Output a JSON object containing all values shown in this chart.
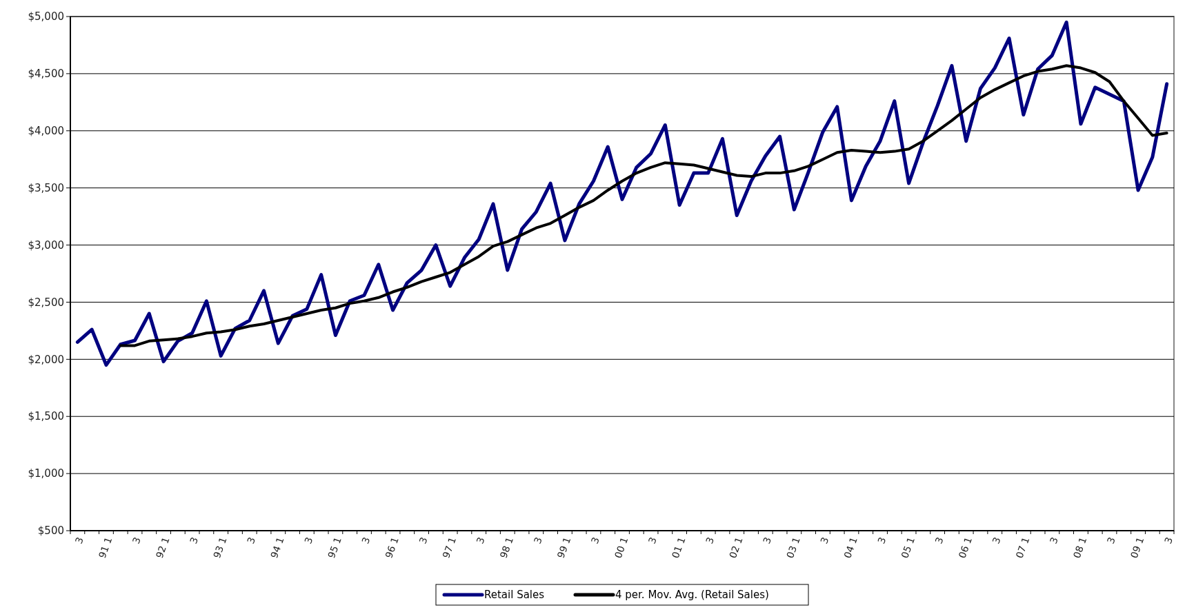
{
  "chart_data": {
    "type": "line",
    "categories": [
      "3",
      null,
      "91 1",
      null,
      "3",
      null,
      "92 1",
      null,
      "3",
      null,
      "93 1",
      null,
      "3",
      null,
      "94 1",
      null,
      "3",
      null,
      "95 1",
      null,
      "3",
      null,
      "96 1",
      null,
      "3",
      null,
      "97 1",
      null,
      "3",
      null,
      "98 1",
      null,
      "3",
      null,
      "99 1",
      null,
      "3",
      null,
      "00 1",
      null,
      "3",
      null,
      "01 1",
      null,
      "3",
      null,
      "02 1",
      null,
      "3",
      null,
      "03 1",
      null,
      "3",
      null,
      "04 1",
      null,
      "3",
      null,
      "05 1",
      null,
      "3",
      null,
      "06 1",
      null,
      "3",
      null,
      "07 1",
      null,
      "3",
      null,
      "08 1",
      null,
      "3",
      null,
      "09 1",
      null,
      "3"
    ],
    "series": [
      {
        "name": "Retail Sales",
        "color": "#000080",
        "values": [
          2150,
          2260,
          1950,
          2130,
          2165,
          2400,
          1980,
          2160,
          2230,
          2510,
          2030,
          2270,
          2340,
          2600,
          2140,
          2380,
          2440,
          2740,
          2210,
          2510,
          2560,
          2830,
          2430,
          2670,
          2780,
          3000,
          2640,
          2890,
          3050,
          3360,
          2780,
          3140,
          3290,
          3540,
          3040,
          3360,
          3560,
          3860,
          3400,
          3680,
          3800,
          4050,
          3350,
          3630,
          3630,
          3930,
          3260,
          3560,
          3780,
          3950,
          3310,
          3640,
          3990,
          4210,
          3390,
          3690,
          3910,
          4260,
          3540,
          3900,
          4220,
          4570,
          3910,
          4370,
          4550,
          4810,
          4140,
          4540,
          4660,
          4950,
          4060,
          4380,
          4320,
          4260,
          3480,
          3770,
          4410
        ]
      },
      {
        "name": "4 per. Mov. Avg. (Retail Sales)",
        "color": "#000000",
        "values": [
          null,
          null,
          null,
          2120,
          2120,
          2160,
          2170,
          2180,
          2200,
          2230,
          2240,
          2260,
          2290,
          2310,
          2340,
          2370,
          2400,
          2430,
          2450,
          2490,
          2510,
          2540,
          2590,
          2630,
          2680,
          2720,
          2760,
          2830,
          2900,
          2990,
          3030,
          3090,
          3150,
          3190,
          3260,
          3330,
          3390,
          3480,
          3560,
          3630,
          3680,
          3720,
          3710,
          3700,
          3670,
          3640,
          3610,
          3600,
          3630,
          3630,
          3650,
          3690,
          3750,
          3810,
          3830,
          3820,
          3810,
          3820,
          3840,
          3910,
          4000,
          4090,
          4190,
          4290,
          4360,
          4420,
          4480,
          4520,
          4540,
          4570,
          4550,
          4510,
          4430,
          4260,
          4110,
          3960,
          3980
        ]
      }
    ],
    "ylim": [
      500,
      5000
    ],
    "yticks": [
      {
        "value": 500,
        "label": "$500"
      },
      {
        "value": 1000,
        "label": "$1,000"
      },
      {
        "value": 1500,
        "label": "$1,500"
      },
      {
        "value": 2000,
        "label": "$2,000"
      },
      {
        "value": 2500,
        "label": "$2,500"
      },
      {
        "value": 3000,
        "label": "$3,000"
      },
      {
        "value": 3500,
        "label": "$3,500"
      },
      {
        "value": 4000,
        "label": "$4,000"
      },
      {
        "value": 4500,
        "label": "$4,500"
      },
      {
        "value": 5000,
        "label": "$5,000"
      }
    ],
    "grid": "y",
    "legend": "bottom",
    "line_style": "solid"
  }
}
